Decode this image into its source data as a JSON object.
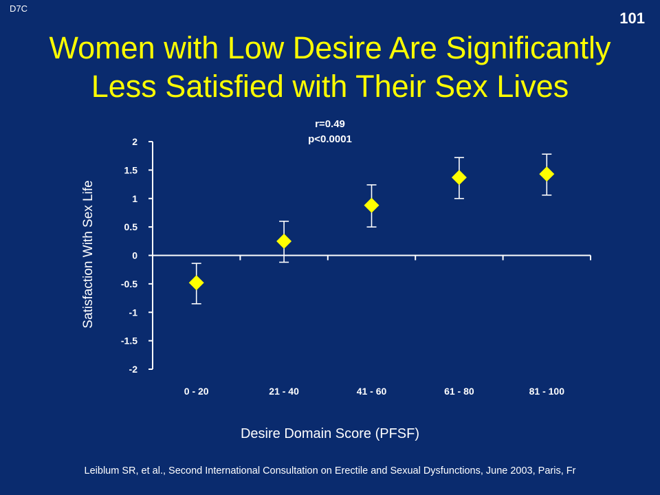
{
  "slide": {
    "corner_tag": "D7C",
    "page_number": "101",
    "title_line1": "Women with Low Desire Are Significantly",
    "title_line2": "Less Satisfied with Their Sex Lives",
    "footer": "Leiblum SR, et al., Second International Consultation on Erectile and Sexual Dysfunctions, June 2003, Paris, Fr"
  },
  "colors": {
    "background": "#0a2b6e",
    "title": "#ffff00",
    "marker": "#ffff00",
    "text": "#ffffff"
  },
  "chart_data": {
    "type": "scatter",
    "annotation_line1": "r=0.49",
    "annotation_line2": "p<0.0001",
    "ylabel": "Satisfaction With Sex Life",
    "xlabel": "Desire Domain Score (PFSF)",
    "categories": [
      "0 - 20",
      "21 - 40",
      "41 - 60",
      "61 - 80",
      "81 - 100"
    ],
    "values": [
      -0.48,
      0.25,
      0.88,
      1.37,
      1.43
    ],
    "error_low": [
      -0.85,
      -0.12,
      0.5,
      1.0,
      1.06
    ],
    "error_high": [
      -0.14,
      0.6,
      1.24,
      1.72,
      1.78
    ],
    "ylim": [
      -2,
      2
    ],
    "yticks": [
      2,
      1.5,
      1,
      0.5,
      0,
      -0.5,
      -1,
      -1.5,
      -2
    ],
    "ytick_labels": [
      "2",
      "1.5",
      "1",
      "0.5",
      "0",
      "-0.5",
      "-1",
      "-1.5",
      "-2"
    ],
    "marker": "diamond",
    "grid": false
  }
}
